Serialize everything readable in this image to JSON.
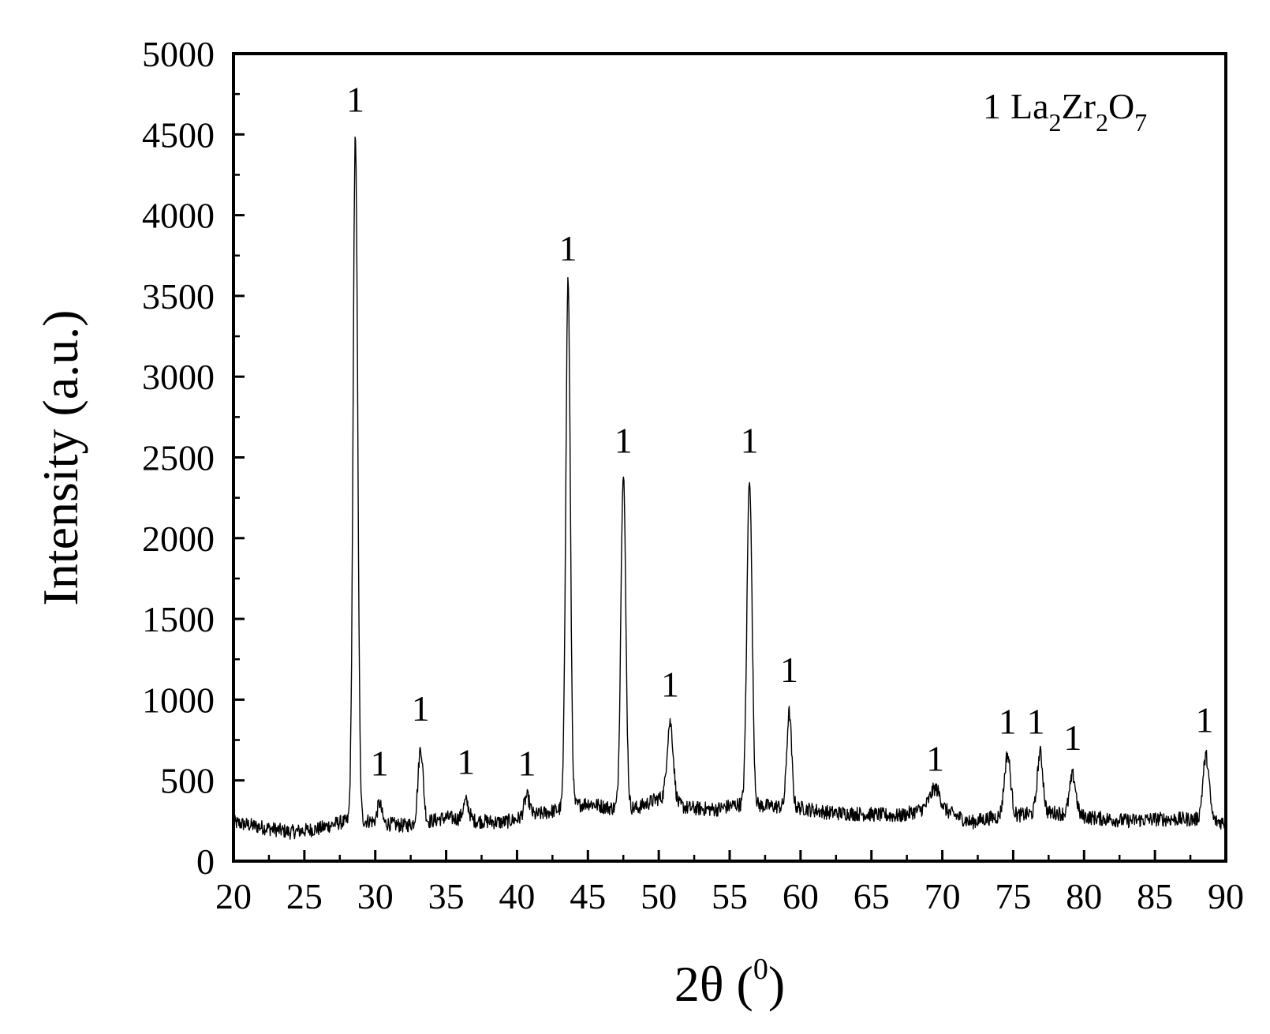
{
  "chart_data": {
    "type": "line",
    "title": "",
    "xlabel_main": "2θ (",
    "xlabel_sup": "0",
    "xlabel_tail": ")",
    "ylabel": "Intensity (a.u.)",
    "xlim": [
      20,
      90
    ],
    "ylim": [
      0,
      5000
    ],
    "x_ticks": [
      20,
      25,
      30,
      35,
      40,
      45,
      50,
      55,
      60,
      65,
      70,
      75,
      80,
      85,
      90
    ],
    "y_ticks": [
      0,
      500,
      1000,
      1500,
      2000,
      2500,
      3000,
      3500,
      4000,
      4500,
      5000
    ],
    "grid": false,
    "legend_placement": "top-right",
    "legend": {
      "marker": "1",
      "formula": [
        {
          "text": "La",
          "sub": "2"
        },
        {
          "text": "Zr",
          "sub": "2"
        },
        {
          "text": "O",
          "sub": "7"
        }
      ]
    },
    "baseline_points": [
      [
        20,
        240
      ],
      [
        22,
        210
      ],
      [
        24,
        180
      ],
      [
        26,
        200
      ],
      [
        27.5,
        240
      ],
      [
        29.5,
        250
      ],
      [
        31,
        230
      ],
      [
        32,
        220
      ],
      [
        34,
        250
      ],
      [
        35,
        270
      ],
      [
        37,
        250
      ],
      [
        39,
        240
      ],
      [
        41,
        280
      ],
      [
        42.5,
        310
      ],
      [
        45,
        360
      ],
      [
        46.5,
        330
      ],
      [
        48.5,
        330
      ],
      [
        50,
        390
      ],
      [
        52,
        330
      ],
      [
        54,
        320
      ],
      [
        55.5,
        350
      ],
      [
        58,
        340
      ],
      [
        60,
        330
      ],
      [
        62,
        300
      ],
      [
        65,
        290
      ],
      [
        67,
        280
      ],
      [
        69,
        330
      ],
      [
        70.5,
        300
      ],
      [
        72,
        240
      ],
      [
        73.5,
        270
      ],
      [
        76,
        290
      ],
      [
        78,
        300
      ],
      [
        80.5,
        270
      ],
      [
        83,
        250
      ],
      [
        85,
        260
      ],
      [
        87.5,
        260
      ],
      [
        90,
        240
      ]
    ],
    "series": [
      {
        "peaks": [
          {
            "x": 28.6,
            "y": 4500,
            "w": 0.16
          },
          {
            "x": 30.3,
            "y": 360,
            "w": 0.15
          },
          {
            "x": 33.2,
            "y": 700,
            "w": 0.18
          },
          {
            "x": 36.4,
            "y": 370,
            "w": 0.2
          },
          {
            "x": 40.7,
            "y": 400,
            "w": 0.2
          },
          {
            "x": 43.6,
            "y": 3600,
            "w": 0.16
          },
          {
            "x": 47.5,
            "y": 2420,
            "w": 0.17
          },
          {
            "x": 50.8,
            "y": 860,
            "w": 0.22
          },
          {
            "x": 56.4,
            "y": 2380,
            "w": 0.18
          },
          {
            "x": 59.2,
            "y": 920,
            "w": 0.17
          },
          {
            "x": 69.5,
            "y": 450,
            "w": 0.35
          },
          {
            "x": 74.6,
            "y": 660,
            "w": 0.22
          },
          {
            "x": 76.9,
            "y": 670,
            "w": 0.2
          },
          {
            "x": 79.2,
            "y": 530,
            "w": 0.22
          },
          {
            "x": 88.6,
            "y": 650,
            "w": 0.22
          }
        ]
      }
    ],
    "peak_labels": [
      {
        "x": 28.6,
        "y": 4640,
        "text": "1"
      },
      {
        "x": 30.3,
        "y": 530,
        "text": "1"
      },
      {
        "x": 33.2,
        "y": 870,
        "text": "1"
      },
      {
        "x": 36.4,
        "y": 540,
        "text": "1"
      },
      {
        "x": 40.7,
        "y": 530,
        "text": "1"
      },
      {
        "x": 43.6,
        "y": 3720,
        "text": "1"
      },
      {
        "x": 47.5,
        "y": 2530,
        "text": "1"
      },
      {
        "x": 50.8,
        "y": 1020,
        "text": "1"
      },
      {
        "x": 56.4,
        "y": 2530,
        "text": "1"
      },
      {
        "x": 59.2,
        "y": 1110,
        "text": "1"
      },
      {
        "x": 69.5,
        "y": 560,
        "text": "1"
      },
      {
        "x": 74.6,
        "y": 790,
        "text": "1"
      },
      {
        "x": 76.6,
        "y": 790,
        "text": "1"
      },
      {
        "x": 79.2,
        "y": 690,
        "text": "1"
      },
      {
        "x": 88.5,
        "y": 800,
        "text": "1"
      }
    ],
    "line_color": "#000000"
  }
}
